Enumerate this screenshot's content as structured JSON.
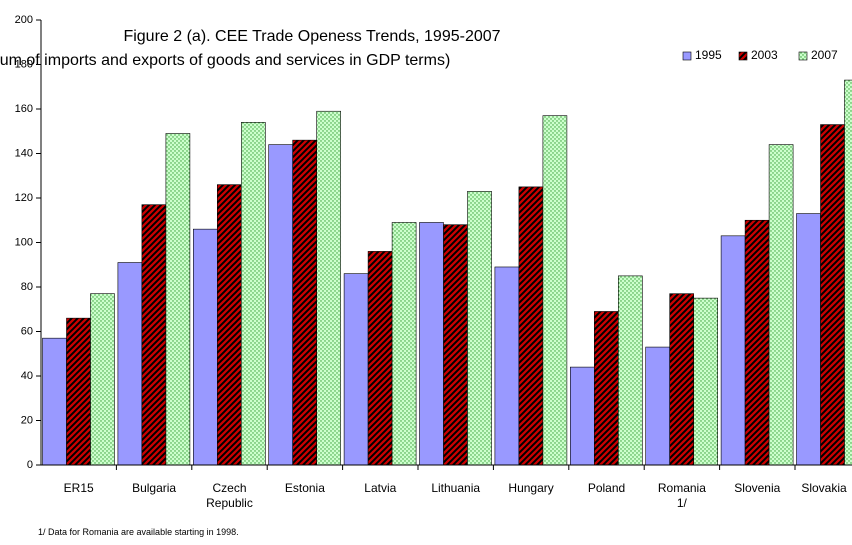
{
  "chart_data": {
    "type": "bar",
    "title": "Figure 2 (a). CEE Trade Openess Trends, 1995-2007",
    "subtitle": "(Sum of imports and exports of goods and services in GDP terms)",
    "footnote": "1/ Data for Romania are available starting in 1998.",
    "categories": [
      "ER15",
      "Bulgaria",
      "Czech Republic",
      "Estonia",
      "Latvia",
      "Lithuania",
      "Hungary",
      "Poland",
      "Romania 1/",
      "Slovenia",
      "Slovakia"
    ],
    "series": [
      {
        "name": "1995",
        "color": "#9999ff",
        "values": [
          57,
          91,
          106,
          144,
          86,
          109,
          89,
          44,
          53,
          103,
          113
        ]
      },
      {
        "name": "2003",
        "color": "#cc0000",
        "values": [
          66,
          117,
          126,
          146,
          96,
          108,
          125,
          69,
          77,
          110,
          153
        ]
      },
      {
        "name": "2007",
        "color": "#ccffcc",
        "values": [
          77,
          149,
          154,
          159,
          109,
          123,
          157,
          85,
          75,
          144,
          173
        ]
      }
    ],
    "ylim": [
      0,
      200
    ],
    "yticks": [
      0,
      20,
      40,
      60,
      80,
      100,
      120,
      140,
      160,
      180,
      200
    ],
    "legend": "top-right",
    "grid": false
  }
}
